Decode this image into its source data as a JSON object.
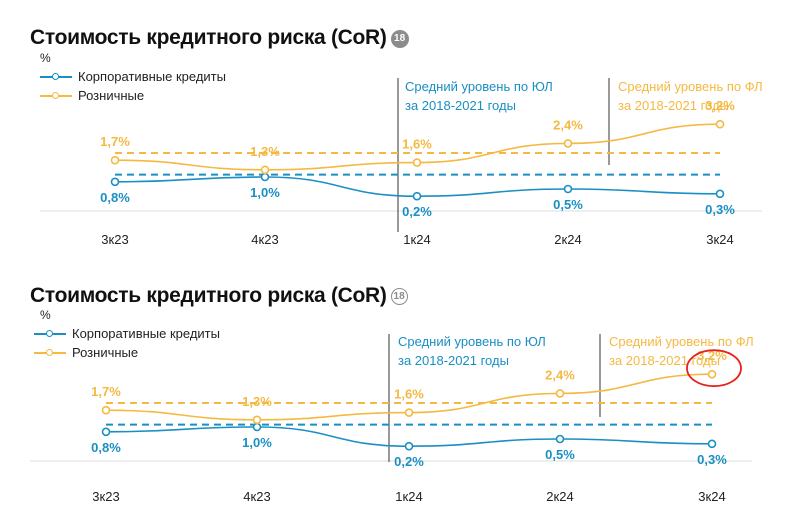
{
  "colors": {
    "corporate": "#1a8fc4",
    "retail": "#f5b942",
    "axis": "#dddddd",
    "divider": "#555555",
    "highlight": "#e8201d"
  },
  "panels": [
    {
      "title": "Стоимость кредитного риска (CoR)",
      "badge": "18",
      "unit": "%",
      "legend": [
        "Корпоративные кредиты",
        "Розничные"
      ],
      "avg_corporate_label": [
        "Средний уровень по ЮЛ",
        "за 2018-2021 годы"
      ],
      "avg_retail_label": [
        "Средний уровень по ФЛ",
        "за 2018-2021 годы"
      ]
    },
    {
      "title": "Стоимость кредитного риска (CoR)",
      "badge": "18",
      "unit": "%",
      "legend": [
        "Корпоративные кредиты",
        "Розничные"
      ],
      "avg_corporate_label": [
        "Средний уровень по ЮЛ",
        "за 2018-2021 годы"
      ],
      "avg_retail_label": [
        "Средний уровень по ФЛ",
        "за 2018-2021 годы"
      ],
      "highlight": "3,2%"
    }
  ],
  "chart_data": [
    {
      "type": "line",
      "title": "Стоимость кредитного риска (CoR)",
      "ylabel": "%",
      "categories": [
        "3к23",
        "4к23",
        "1к24",
        "2к24",
        "3к24"
      ],
      "series": [
        {
          "name": "Корпоративные кредиты",
          "values": [
            0.8,
            1.0,
            0.2,
            0.5,
            0.3
          ],
          "labels": [
            "0,8%",
            "1,0%",
            "0,2%",
            "0,5%",
            "0,3%"
          ]
        },
        {
          "name": "Розничные",
          "values": [
            1.7,
            1.3,
            1.6,
            2.4,
            3.2
          ],
          "labels": [
            "1,7%",
            "1,3%",
            "1,6%",
            "2,4%",
            "3,2%"
          ]
        }
      ],
      "avg_corporate": 1.1,
      "avg_retail": 2.0,
      "ylim": [
        -0.4,
        3.6
      ],
      "grid": false
    },
    {
      "type": "line",
      "title": "Стоимость кредитного риска (CoR)",
      "ylabel": "%",
      "categories": [
        "3к23",
        "4к23",
        "1к24",
        "2к24",
        "3к24"
      ],
      "series": [
        {
          "name": "Корпоративные кредиты",
          "values": [
            0.8,
            1.0,
            0.2,
            0.5,
            0.3
          ],
          "labels": [
            "0,8%",
            "1,0%",
            "0,2%",
            "0,5%",
            "0,3%"
          ]
        },
        {
          "name": "Розничные",
          "values": [
            1.7,
            1.3,
            1.6,
            2.4,
            3.2
          ],
          "labels": [
            "1,7%",
            "1,3%",
            "1,6%",
            "2,4%",
            "3,2%"
          ]
        }
      ],
      "avg_corporate": 1.1,
      "avg_retail": 2.0,
      "ylim": [
        -0.4,
        3.6
      ],
      "grid": false,
      "highlighted_point": "3,2%"
    }
  ]
}
